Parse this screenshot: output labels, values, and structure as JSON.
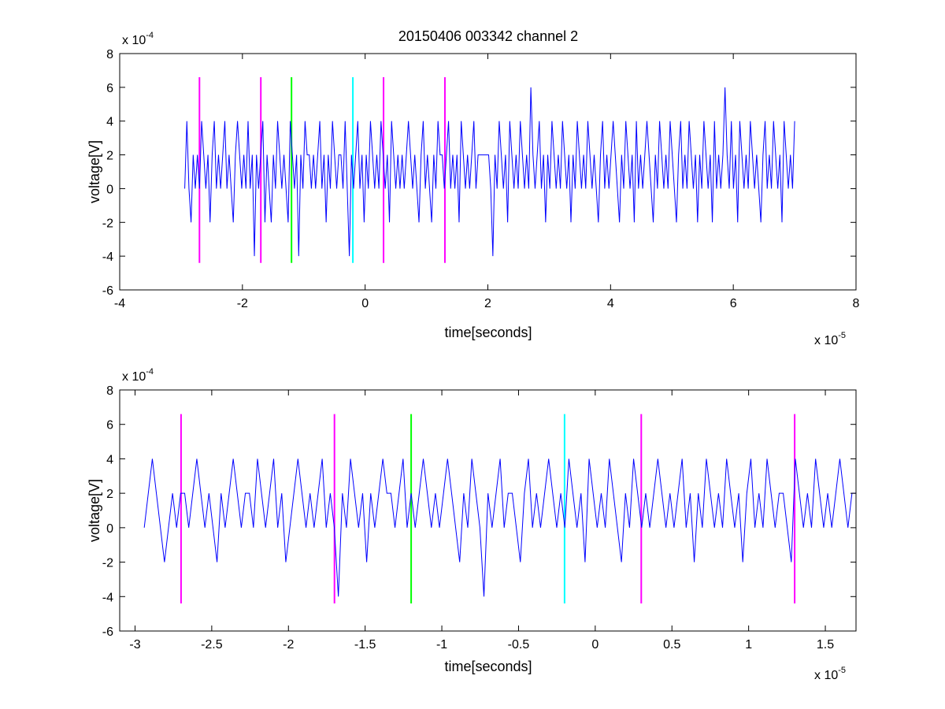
{
  "colors": {
    "signal": "#0000ff",
    "magenta": "#ff00ff",
    "green": "#00ff00",
    "cyan": "#00ffff",
    "axis": "#000000",
    "background": "#ffffff"
  },
  "chart_data": [
    {
      "type": "line",
      "title": "20150406 003342 channel 2",
      "xlabel": "time[seconds]",
      "ylabel": "voltage[V]",
      "x_multiplier": "x 10",
      "x_exponent": "-5",
      "y_multiplier": "x 10",
      "y_exponent": "-4",
      "xlim": [
        -4,
        8
      ],
      "ylim": [
        -6,
        8
      ],
      "xticks": [
        -4,
        -2,
        0,
        2,
        4,
        6,
        8
      ],
      "xtick_labels": [
        "-4",
        "-2",
        "0",
        "2",
        "4",
        "6",
        "8"
      ],
      "yticks": [
        -6,
        -4,
        -2,
        0,
        2,
        4,
        6,
        8
      ],
      "ytick_labels": [
        "-6",
        "-4",
        "-2",
        "0",
        "2",
        "4",
        "6",
        "8"
      ],
      "grid": false,
      "legend": "none",
      "signal": {
        "x_start": -2.94,
        "x_end": 7.0,
        "values": [
          0,
          4,
          0,
          -2,
          2,
          0,
          2,
          0,
          4,
          2,
          0,
          2,
          -2,
          2,
          4,
          0,
          2,
          0,
          2,
          4,
          0,
          2,
          0,
          -2,
          2,
          4,
          2,
          0,
          2,
          0,
          4,
          0,
          2,
          -4,
          2,
          0,
          2,
          4,
          -2,
          2,
          0,
          -2,
          2,
          0,
          4,
          2,
          0,
          2,
          0,
          -2,
          4,
          2,
          0,
          2,
          -4,
          2,
          0,
          4,
          2,
          2,
          0,
          2,
          0,
          2,
          4,
          0,
          2,
          -2,
          2,
          0,
          4,
          2,
          0,
          2,
          2,
          0,
          4,
          0,
          -4,
          2,
          0,
          2,
          4,
          0,
          2,
          -2,
          2,
          0,
          4,
          2,
          0,
          2,
          0,
          4,
          2,
          0,
          2,
          -2,
          4,
          2,
          0,
          2,
          0,
          2,
          0,
          2,
          4,
          2,
          0,
          2,
          0,
          -2,
          2,
          4,
          0,
          2,
          0,
          -2,
          2,
          0,
          4,
          2,
          2,
          0,
          2,
          4,
          0,
          2,
          0,
          2,
          -2,
          4,
          2,
          0,
          2,
          0,
          2,
          4,
          0,
          2,
          2,
          2,
          2,
          2,
          2,
          0,
          -4,
          2,
          0,
          4,
          2,
          0,
          2,
          -2,
          4,
          2,
          0,
          2,
          0,
          4,
          2,
          0,
          2,
          0,
          6,
          2,
          0,
          2,
          4,
          0,
          2,
          -2,
          2,
          0,
          4,
          2,
          0,
          2,
          0,
          4,
          2,
          0,
          2,
          -2,
          2,
          0,
          4,
          2,
          0,
          2,
          0,
          4,
          2,
          0,
          2,
          0,
          -2,
          2,
          4,
          0,
          2,
          0,
          2,
          4,
          2,
          0,
          -2,
          2,
          0,
          4,
          2,
          0,
          2,
          -2,
          4,
          0,
          2,
          0,
          2,
          4,
          2,
          0,
          -2,
          2,
          0,
          4,
          2,
          0,
          2,
          0,
          4,
          2,
          0,
          -2,
          2,
          4,
          0,
          2,
          0,
          4,
          2,
          0,
          2,
          -2,
          2,
          0,
          4,
          2,
          0,
          2,
          -2,
          4,
          0,
          2,
          0,
          2,
          6,
          2,
          0,
          4,
          0,
          2,
          -2,
          4,
          2,
          0,
          2,
          0,
          4,
          2,
          0,
          2,
          0,
          -2,
          2,
          4,
          0,
          2,
          0,
          4,
          2,
          0,
          2,
          -2,
          4,
          2,
          0,
          2,
          0,
          4
        ]
      },
      "markers": [
        {
          "x": -2.7,
          "color": "magenta",
          "ymin": -4.4,
          "ymax": 6.6
        },
        {
          "x": -1.7,
          "color": "magenta",
          "ymin": -4.4,
          "ymax": 6.6
        },
        {
          "x": -1.2,
          "color": "green",
          "ymin": -4.4,
          "ymax": 6.6
        },
        {
          "x": -0.2,
          "color": "cyan",
          "ymin": -4.4,
          "ymax": 6.6
        },
        {
          "x": 0.3,
          "color": "magenta",
          "ymin": -4.4,
          "ymax": 6.6
        },
        {
          "x": 1.3,
          "color": "magenta",
          "ymin": -4.4,
          "ymax": 6.6
        }
      ]
    },
    {
      "type": "line",
      "title": "",
      "xlabel": "time[seconds]",
      "ylabel": "voltage[V]",
      "x_multiplier": "x 10",
      "x_exponent": "-5",
      "y_multiplier": "x 10",
      "y_exponent": "-4",
      "xlim": [
        -3.1,
        1.7
      ],
      "ylim": [
        -6,
        8
      ],
      "xticks": [
        -3,
        -2.5,
        -2,
        -1.5,
        -1,
        -0.5,
        0,
        0.5,
        1,
        1.5
      ],
      "xtick_labels": [
        "-3",
        "-2.5",
        "-2",
        "-1.5",
        "-1",
        "-0.5",
        "0",
        "0.5",
        "1",
        "1.5"
      ],
      "yticks": [
        -6,
        -4,
        -2,
        0,
        2,
        4,
        6,
        8
      ],
      "ytick_labels": [
        "-6",
        "-4",
        "-2",
        "0",
        "2",
        "4",
        "6",
        "8"
      ],
      "grid": false,
      "legend": "none",
      "signal": {
        "x_start": -2.94,
        "x_end": 1.7,
        "values": [
          0,
          2,
          4,
          2,
          0,
          -2,
          0,
          2,
          0,
          2,
          2,
          0,
          2,
          4,
          2,
          0,
          2,
          0,
          -2,
          2,
          0,
          2,
          4,
          2,
          0,
          2,
          2,
          0,
          4,
          2,
          0,
          2,
          4,
          0,
          2,
          -2,
          0,
          2,
          4,
          2,
          0,
          2,
          0,
          2,
          4,
          0,
          2,
          0,
          -4,
          2,
          0,
          4,
          2,
          0,
          2,
          -2,
          2,
          0,
          2,
          4,
          2,
          2,
          0,
          2,
          4,
          0,
          2,
          0,
          2,
          4,
          2,
          0,
          2,
          0,
          2,
          4,
          2,
          0,
          -2,
          2,
          0,
          4,
          2,
          0,
          -4,
          2,
          0,
          2,
          4,
          0,
          2,
          2,
          0,
          -2,
          2,
          4,
          0,
          2,
          0,
          2,
          4,
          2,
          0,
          2,
          0,
          4,
          2,
          0,
          2,
          -2,
          4,
          2,
          0,
          2,
          0,
          4,
          2,
          0,
          -2,
          2,
          0,
          4,
          2,
          0,
          2,
          0,
          2,
          4,
          2,
          0,
          2,
          0,
          2,
          4,
          0,
          2,
          -2,
          2,
          0,
          4,
          2,
          0,
          2,
          0,
          4,
          2,
          0,
          2,
          -2,
          2,
          4,
          0,
          2,
          0,
          4,
          2,
          0,
          2,
          2,
          0,
          -2,
          4,
          2,
          0,
          2,
          0,
          4,
          2,
          0,
          2,
          0,
          2,
          4,
          2,
          0,
          2,
          2
        ]
      },
      "markers": [
        {
          "x": -2.7,
          "color": "magenta",
          "ymin": -4.4,
          "ymax": 6.6
        },
        {
          "x": -1.7,
          "color": "magenta",
          "ymin": -4.4,
          "ymax": 6.6
        },
        {
          "x": -1.2,
          "color": "green",
          "ymin": -4.4,
          "ymax": 6.6
        },
        {
          "x": -0.2,
          "color": "cyan",
          "ymin": -4.4,
          "ymax": 6.6
        },
        {
          "x": 0.3,
          "color": "magenta",
          "ymin": -4.4,
          "ymax": 6.6
        },
        {
          "x": 1.3,
          "color": "magenta",
          "ymin": -4.4,
          "ymax": 6.6
        }
      ]
    }
  ]
}
